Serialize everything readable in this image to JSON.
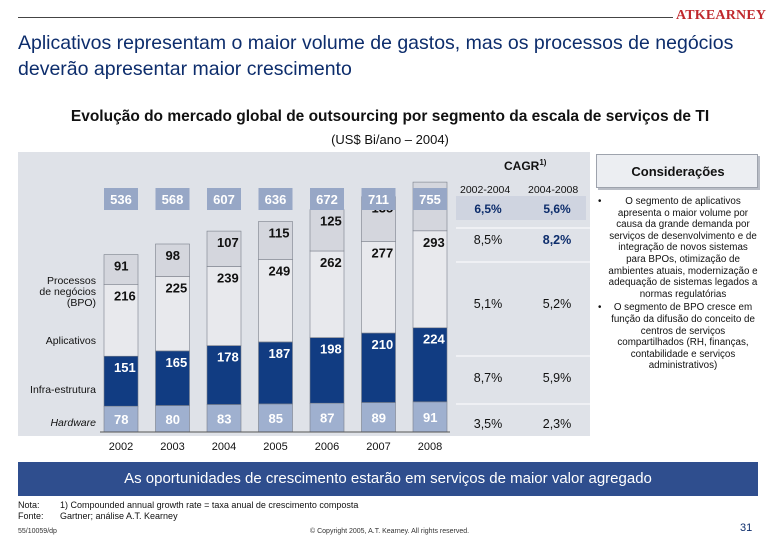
{
  "header": {
    "logo": "ATKEARNEY",
    "title": "Aplicativos representam o maior volume de gastos, mas os processos de negócios deverão apresentar maior crescimento"
  },
  "subtitle": "Evolução do mercado global de outsourcing por segmento da escala de serviços de TI",
  "subtitle_unit": "(US$ Bi/ano – 2004)",
  "chart_data": {
    "type": "bar",
    "stacked": true,
    "categories": [
      "2002",
      "2003",
      "2004",
      "2005",
      "2006",
      "2007",
      "2008"
    ],
    "series": [
      {
        "name": "Hardware",
        "values": [
          78,
          80,
          83,
          85,
          87,
          89,
          91
        ],
        "color": "#9fb0cf"
      },
      {
        "name": "Infra-estrutura",
        "values": [
          151,
          165,
          178,
          187,
          198,
          210,
          224
        ],
        "color": "#113c82"
      },
      {
        "name": "Aplicativos",
        "values": [
          216,
          225,
          239,
          249,
          262,
          277,
          293
        ],
        "color": "#e8e9ed"
      },
      {
        "name": "Processos de negócios (BPO)",
        "values": [
          91,
          98,
          107,
          115,
          125,
          135,
          147
        ],
        "color": "#d4d6dd"
      }
    ],
    "totals": [
      536,
      568,
      607,
      636,
      672,
      711,
      755
    ],
    "cagr": {
      "title": "CAGR",
      "title_footnote": "1)",
      "periods": [
        "2002-2004",
        "2004-2008"
      ],
      "total": [
        "6,5%",
        "5,6%"
      ],
      "rows": [
        {
          "segment": "Processos de negócios (BPO)",
          "values": [
            "8,5%",
            "8,2%"
          ]
        },
        {
          "segment": "Aplicativos",
          "values": [
            "5,1%",
            "5,2%"
          ]
        },
        {
          "segment": "Infra-estrutura",
          "values": [
            "8,7%",
            "5,9%"
          ]
        },
        {
          "segment": "Hardware",
          "values": [
            "3,5%",
            "2,3%"
          ]
        }
      ]
    }
  },
  "considerations": {
    "title": "Considerações",
    "items": [
      "O segmento de aplicativos apresenta o maior volume por causa da grande demanda por serviços de desenvolvimento e de integração de novos sistemas para BPOs, otimização de ambientes atuais, modernização e adequação de sistemas legados a normas regulatórias",
      "O segmento de BPO cresce em função da difusão do conceito de centros de serviços compartilhados (RH, finanças, contabilidade e serviços administrativos)"
    ]
  },
  "banner": "As oportunidades de crescimento estarão em serviços de maior valor agregado",
  "notes": {
    "nota_label": "Nota:",
    "nota_text": "1) Compounded annual growth rate = taxa anual de crescimento composta",
    "fonte_label": "Fonte:",
    "fonte_text": "Gartner; análise A.T. Kearney"
  },
  "footer": {
    "code": "55/10059/dp",
    "copyright": "© Copyright 2005, A.T. Kearney. All rights reserved.",
    "page": "31"
  }
}
